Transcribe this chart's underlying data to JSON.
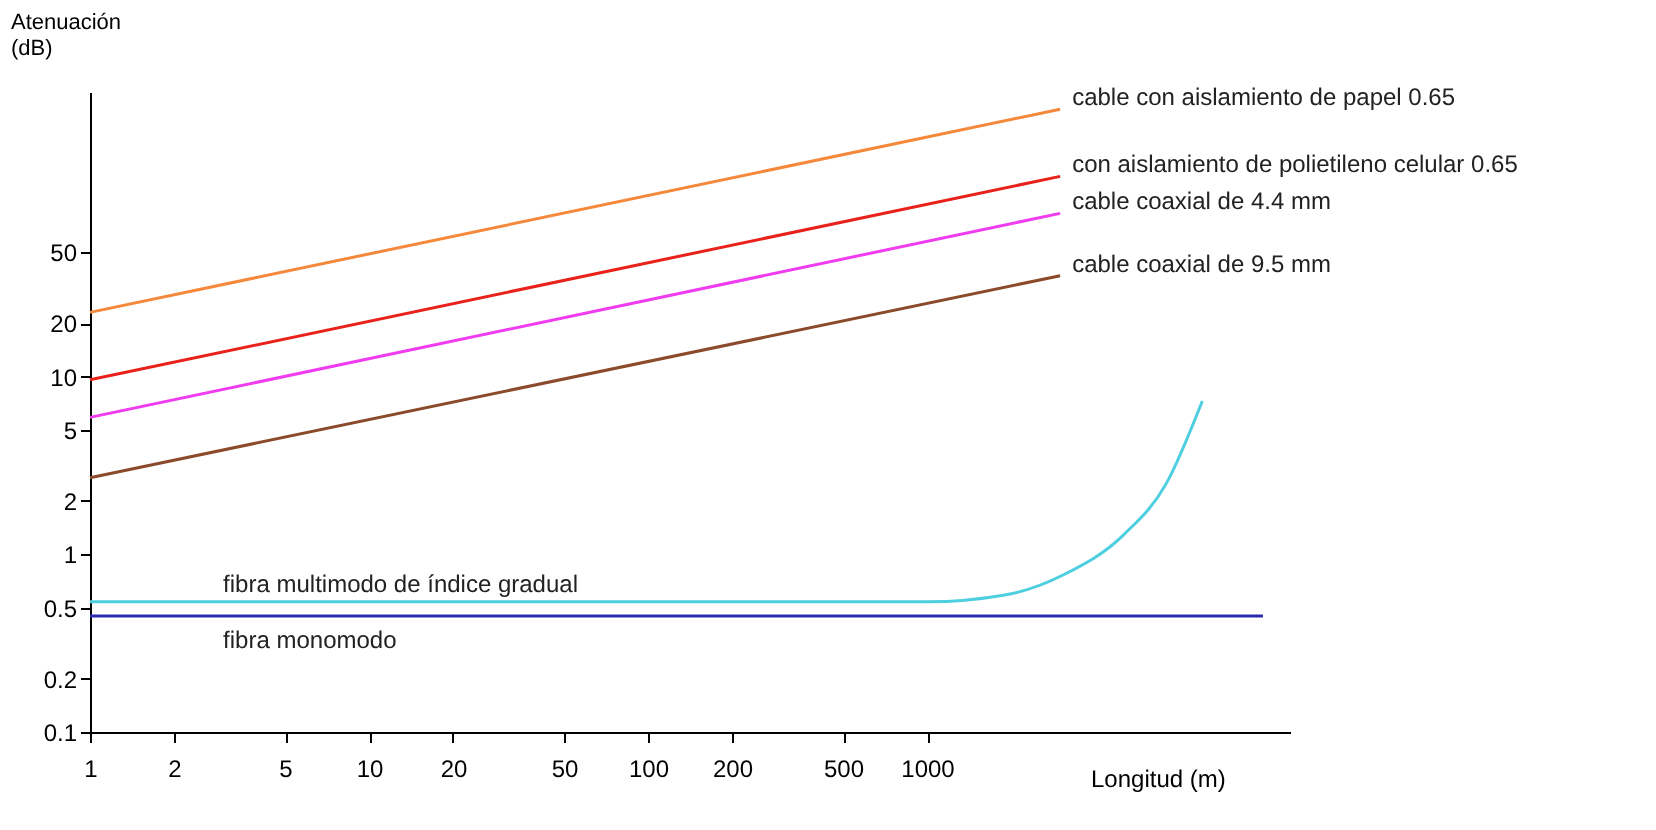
{
  "chart_data": {
    "type": "line",
    "xlabel": "Longitud (m)",
    "ylabel": "Atenuación (dB)",
    "series": [
      {
        "name": "cable con aislamiento de papel 0.65",
        "color": "#f5883a",
        "x": [
          1,
          3000
        ],
        "values": [
          23,
          320
        ]
      },
      {
        "name": "con aislamiento de polietileno celular 0.65",
        "color": "#e8221a",
        "x": [
          1,
          3000
        ],
        "values": [
          9.6,
          134
        ]
      },
      {
        "name": "cable coaxial de 4.4 mm",
        "color": "#f03cf0",
        "x": [
          1,
          3000
        ],
        "values": [
          5.9,
          83
        ]
      },
      {
        "name": "cable coaxial de 9.5 mm",
        "color": "#8b4a2a",
        "x": [
          1,
          3000
        ],
        "values": [
          2.7,
          37
        ]
      },
      {
        "name": "fibra multimodo de índice gradual",
        "color": "#4ecfe0",
        "x": [
          1,
          1000,
          1900,
          3100,
          5100,
          7200,
          9700
        ],
        "values": [
          0.54,
          0.54,
          0.59,
          0.77,
          1.3,
          2.5,
          7.3
        ]
      },
      {
        "name": "fibra monomodo",
        "color": "#2a2ab0",
        "x": [
          1,
          16000
        ],
        "values": [
          0.45,
          0.45
        ]
      }
    ],
    "log": "xy",
    "xlim": [
      1,
      20000
    ],
    "xticks": [
      1,
      2,
      5,
      10,
      20,
      50,
      100,
      200,
      500,
      1000
    ],
    "ylim": [
      0.1,
      400
    ],
    "yticks": [
      0.1,
      0.2,
      0.5,
      1,
      2,
      5,
      10,
      20,
      50
    ],
    "grid": false,
    "marker": "none",
    "line_style": "solid"
  }
}
